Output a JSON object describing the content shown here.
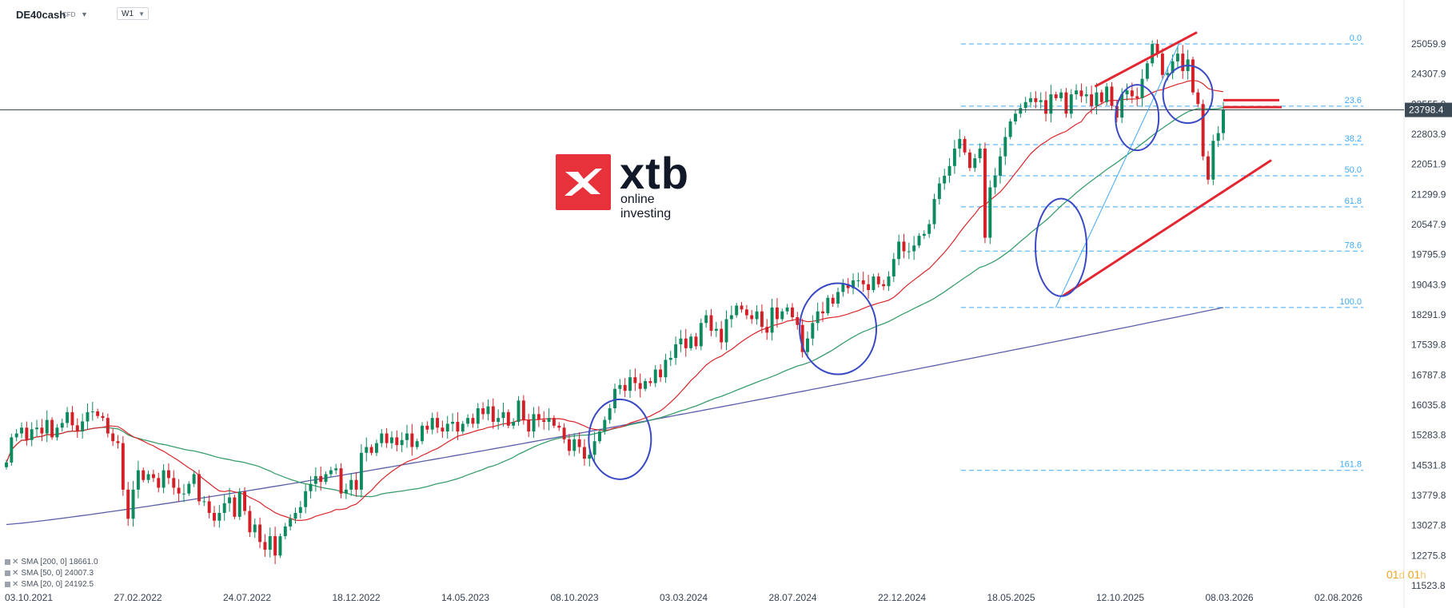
{
  "header": {
    "symbol": "DE40cash",
    "symbol_type": "CFD",
    "timeframe": "W1"
  },
  "logo": {
    "word": "xtb",
    "tagline": "online investing"
  },
  "price_badge": {
    "value": "23798.4",
    "color": "#3c4a55"
  },
  "legend": [
    {
      "label": "SMA [200, 0] 18661.0"
    },
    {
      "label": "SMA [50, 0] 24007.3"
    },
    {
      "label": "SMA [20, 0] 24192.5"
    }
  ],
  "countdown": {
    "d_value": "01",
    "d_unit": "d",
    "h_value": "01",
    "h_unit": "h"
  },
  "chart_data": {
    "type": "candlestick",
    "title": "",
    "ylim": [
      11523.8,
      25500
    ],
    "y_ticks": [
      "25059.9",
      "24307.9",
      "23555.9",
      "22803.9",
      "22051.9",
      "21299.9",
      "20547.9",
      "19795.9",
      "19043.9",
      "18291.9",
      "17539.8",
      "16787.8",
      "16035.8",
      "15283.8",
      "14531.8",
      "13779.8",
      "13027.8",
      "12275.8",
      "11523.8"
    ],
    "x_ticks": [
      "03.10.2021",
      "27.02.2022",
      "24.07.2022",
      "18.12.2022",
      "14.05.2023",
      "08.10.2023",
      "03.03.2024",
      "28.07.2024",
      "22.12.2024",
      "18.05.2025",
      "12.10.2025",
      "08.03.2026",
      "02.08.2026"
    ],
    "current_price": 23798.4,
    "colors": {
      "up": "#0e8a5f",
      "down": "#d32027",
      "sma200": "#5b5fa8",
      "sma50": "#3a9d6e",
      "sma20": "#d9262b",
      "fib": "#3fa9f5",
      "channel": "#e32631",
      "circle": "#3949c4"
    },
    "fibonacci": [
      {
        "level": "0.0",
        "price": 25500
      },
      {
        "level": "23.6",
        "price": 23895
      },
      {
        "level": "38.2",
        "price": 22902
      },
      {
        "level": "50.0",
        "price": 22100
      },
      {
        "level": "61.8",
        "price": 21297
      },
      {
        "level": "78.6",
        "price": 20155
      },
      {
        "level": "100.0",
        "price": 18700
      },
      {
        "level": "161.8",
        "price": 14498
      }
    ],
    "weekly_closes": [
      14700,
      15350,
      15450,
      15600,
      15280,
      15560,
      15600,
      15450,
      15800,
      15350,
      15600,
      15720,
      16000,
      15660,
      15500,
      15760,
      16000,
      16020,
      15900,
      15850,
      15450,
      15250,
      15200,
      14000,
      13250,
      14000,
      14500,
      14250,
      14400,
      14300,
      14050,
      14500,
      14300,
      14050,
      13900,
      13900,
      14150,
      14400,
      13700,
      13700,
      13400,
      13200,
      13400,
      13650,
      13800,
      13300,
      13950,
      13450,
      12900,
      13100,
      12650,
      12450,
      12800,
      12300,
      12800,
      13050,
      13250,
      13400,
      13550,
      13960,
      14150,
      14350,
      14200,
      14400,
      14500,
      14550,
      13900,
      14000,
      14250,
      14000,
      14950,
      15100,
      14950,
      15200,
      15450,
      15200,
      15350,
      15150,
      15280,
      15450,
      15100,
      15250,
      15650,
      15550,
      15850,
      15600,
      15500,
      15700,
      15750,
      15500,
      15700,
      15850,
      15700,
      16100,
      15950,
      16150,
      15750,
      15850,
      16000,
      15650,
      15750,
      16300,
      15800,
      15500,
      15950,
      15800,
      15750,
      15850,
      15650,
      15600,
      15300,
      15000,
      15300,
      15100,
      14800,
      14900,
      15250,
      15500,
      15800,
      16100,
      16600,
      16700,
      16550,
      16900,
      16750,
      16600,
      16800,
      16750,
      17100,
      16900,
      17350,
      17400,
      17750,
      17900,
      17650,
      17950,
      17700,
      18300,
      18500,
      18100,
      18150,
      17800,
      18400,
      18500,
      18750,
      18650,
      18500,
      18400,
      18600,
      18200,
      18050,
      18700,
      18400,
      18600,
      18700,
      18450,
      18250,
      17550,
      17900,
      18300,
      18600,
      18550,
      18950,
      18800,
      19100,
      19300,
      19200,
      19400,
      19400,
      19300,
      19150,
      19500,
      19300,
      19250,
      19500,
      19950,
      20400,
      20150,
      20150,
      20300,
      20550,
      20600,
      20850,
      21500,
      21900,
      22100,
      22350,
      22800,
      23050,
      22700,
      22300,
      22550,
      22800,
      20500,
      21800,
      22100,
      22600,
      23100,
      23500,
      23700,
      23850,
      24000,
      24100,
      24000,
      24050,
      23700,
      24200,
      24100,
      24250,
      23700,
      24200,
      24300,
      24150,
      24200,
      23900,
      24250,
      24000,
      24400,
      23900,
      23600,
      24200,
      24300,
      24150,
      24100,
      24600,
      25000,
      25500,
      25250,
      24700,
      24750,
      25050,
      25250,
      24800,
      25100,
      24250,
      23950,
      22600,
      22000,
      23000,
      23200,
      23798.4
    ]
  }
}
